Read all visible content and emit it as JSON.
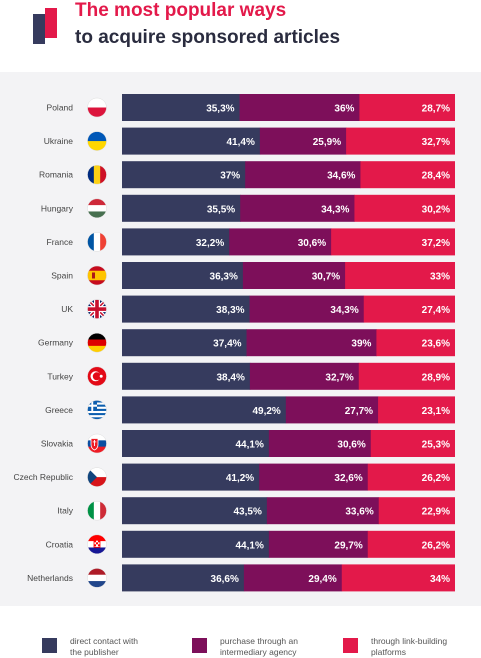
{
  "header": {
    "title_line1": "The most popular ways",
    "title_line2": "to acquire sponsored articles"
  },
  "colors": {
    "direct": "#363b5e",
    "agency": "#7d0f5a",
    "platforms": "#e3194a"
  },
  "chart_data": {
    "type": "bar",
    "stacked": true,
    "orientation": "horizontal",
    "normalized_percent": true,
    "categories": [
      "Poland",
      "Ukraine",
      "Romania",
      "Hungary",
      "France",
      "Spain",
      "UK",
      "Germany",
      "Turkey",
      "Greece",
      "Slovakia",
      "Czech Republic",
      "Italy",
      "Croatia",
      "Netherlands"
    ],
    "series": [
      {
        "name": "direct contact with the publisher",
        "values": [
          35.3,
          41.4,
          37,
          35.5,
          32.2,
          36.3,
          38.3,
          37.4,
          38.4,
          49.2,
          44.1,
          41.2,
          43.5,
          44.1,
          36.6
        ],
        "labels": [
          "35,3%",
          "41,4%",
          "37%",
          "35,5%",
          "32,2%",
          "36,3%",
          "38,3%",
          "37,4%",
          "38,4%",
          "49,2%",
          "44,1%",
          "41,2%",
          "43,5%",
          "44,1%",
          "36,6%"
        ]
      },
      {
        "name": "purchase through an intermediary agency",
        "values": [
          36,
          25.9,
          34.6,
          34.3,
          30.6,
          30.7,
          34.3,
          39,
          32.7,
          27.7,
          30.6,
          32.6,
          33.6,
          29.7,
          29.4
        ],
        "labels": [
          "36%",
          "25,9%",
          "34,6%",
          "34,3%",
          "30,6%",
          "30,7%",
          "34,3%",
          "39%",
          "32,7%",
          "27,7%",
          "30,6%",
          "32,6%",
          "33,6%",
          "29,7%",
          "29,4%"
        ]
      },
      {
        "name": "through link-building platforms",
        "values": [
          28.7,
          32.7,
          28.4,
          30.2,
          37.2,
          33,
          27.4,
          23.6,
          28.9,
          23.1,
          25.3,
          26.2,
          22.9,
          26.2,
          34
        ],
        "labels": [
          "28,7%",
          "32,7%",
          "28,4%",
          "30,2%",
          "37,2%",
          "33%",
          "27,4%",
          "23,6%",
          "28,9%",
          "23,1%",
          "25,3%",
          "26,2%",
          "22,9%",
          "26,2%",
          "34%"
        ]
      }
    ],
    "flags": [
      "poland-flag-icon",
      "ukraine-flag-icon",
      "romania-flag-icon",
      "hungary-flag-icon",
      "france-flag-icon",
      "spain-flag-icon",
      "uk-flag-icon",
      "germany-flag-icon",
      "turkey-flag-icon",
      "greece-flag-icon",
      "slovakia-flag-icon",
      "czech-republic-flag-icon",
      "italy-flag-icon",
      "croatia-flag-icon",
      "netherlands-flag-icon"
    ],
    "legend_position": "bottom",
    "grid": false
  },
  "legend": {
    "direct_line1": "direct contact with",
    "direct_line2": "the publisher",
    "agency_line1": "purchase through an",
    "agency_line2": "intermediary agency",
    "platforms_line1": "through link-building",
    "platforms_line2": "platforms"
  }
}
